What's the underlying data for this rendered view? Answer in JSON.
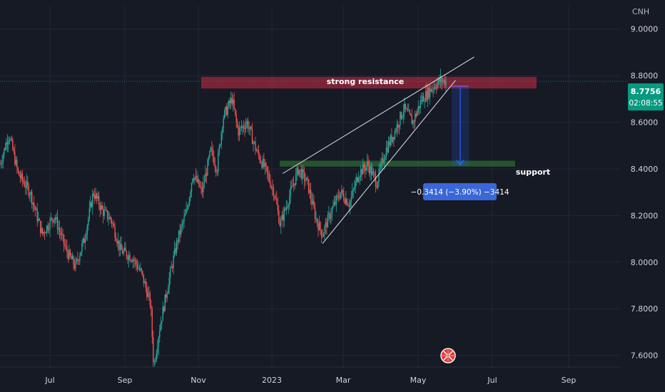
{
  "colors": {
    "background": "#161a25",
    "grid": "#232733",
    "up": "#26a69a",
    "down": "#ef5350",
    "axis_text": "#d1d4dc",
    "resistance_zone": "#b2283f",
    "support_zone": "#2e7d32",
    "price_tag": "#089981",
    "measure": "#2962ff",
    "measure_label": "#2962ff"
  },
  "chart_data": {
    "type": "candlestick",
    "symbol_currency": "CNH",
    "ylim": [
      7.55,
      9.1
    ],
    "y_ticks": [
      {
        "value": 9.0,
        "label": "9.0000"
      },
      {
        "value": 8.8,
        "label": "8.8000"
      },
      {
        "value": 8.6,
        "label": "8.6000"
      },
      {
        "value": 8.4,
        "label": "8.4000"
      },
      {
        "value": 8.2,
        "label": "8.2000"
      },
      {
        "value": 8.0,
        "label": "8.0000"
      },
      {
        "value": 7.8,
        "label": "7.8000"
      },
      {
        "value": 7.6,
        "label": "7.6000"
      }
    ],
    "x_ticks": [
      "Jul",
      "Sep",
      "Nov",
      "2023",
      "Mar",
      "May",
      "Jul",
      "Sep"
    ],
    "price_path": [
      [
        0,
        8.42
      ],
      [
        3,
        8.55
      ],
      [
        6,
        8.38
      ],
      [
        10,
        8.3
      ],
      [
        14,
        8.12
      ],
      [
        18,
        8.2
      ],
      [
        22,
        8.05
      ],
      [
        25,
        7.98
      ],
      [
        28,
        8.1
      ],
      [
        31,
        8.3
      ],
      [
        34,
        8.22
      ],
      [
        37,
        8.18
      ],
      [
        40,
        8.05
      ],
      [
        44,
        8.02
      ],
      [
        47,
        7.95
      ],
      [
        50,
        7.82
      ],
      [
        51,
        7.55
      ],
      [
        53,
        7.72
      ],
      [
        56,
        7.92
      ],
      [
        59,
        8.1
      ],
      [
        62,
        8.22
      ],
      [
        64,
        8.38
      ],
      [
        67,
        8.3
      ],
      [
        70,
        8.48
      ],
      [
        72,
        8.4
      ],
      [
        74,
        8.62
      ],
      [
        77,
        8.7
      ],
      [
        79,
        8.56
      ],
      [
        82,
        8.6
      ],
      [
        85,
        8.48
      ],
      [
        88,
        8.4
      ],
      [
        91,
        8.3
      ],
      [
        93,
        8.16
      ],
      [
        96,
        8.28
      ],
      [
        99,
        8.4
      ],
      [
        102,
        8.34
      ],
      [
        105,
        8.18
      ],
      [
        107,
        8.12
      ],
      [
        110,
        8.22
      ],
      [
        113,
        8.3
      ],
      [
        116,
        8.25
      ],
      [
        119,
        8.38
      ],
      [
        122,
        8.42
      ],
      [
        125,
        8.34
      ],
      [
        128,
        8.48
      ],
      [
        131,
        8.56
      ],
      [
        134,
        8.66
      ],
      [
        137,
        8.6
      ],
      [
        140,
        8.7
      ],
      [
        143,
        8.74
      ],
      [
        146,
        8.78
      ],
      [
        148,
        8.776
      ]
    ],
    "series_x_range": [
      0,
      148
    ],
    "current_price": {
      "value": 8.7756,
      "label": "8.7756",
      "countdown": "02:08:55"
    },
    "resistance_zone": {
      "label": "strong resistance",
      "y_low": 8.745,
      "y_high": 8.795
    },
    "support_zone": {
      "label": "support",
      "y_low": 8.41,
      "y_high": 8.435
    },
    "wedge_upper": [
      [
        8.38,
        0.425
      ],
      [
        8.88,
        0.713
      ]
    ],
    "wedge_lower": [
      [
        8.08,
        0.485
      ],
      [
        8.78,
        0.685
      ]
    ],
    "measure": {
      "from": 8.755,
      "to": 8.4136,
      "label": "−0.3414 (−3.90%) −3414"
    }
  }
}
